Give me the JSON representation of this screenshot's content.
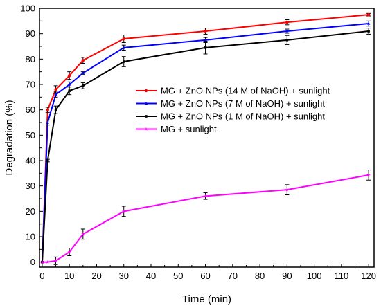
{
  "chart_data": {
    "type": "line",
    "title": "",
    "xlabel": "Time (min)",
    "ylabel": "Degradation (%)",
    "xlim": [
      -1,
      122
    ],
    "ylim": [
      -2,
      100
    ],
    "xticks": [
      0,
      10,
      20,
      30,
      40,
      50,
      60,
      70,
      80,
      90,
      100,
      110,
      120
    ],
    "yticks": [
      0,
      10,
      20,
      30,
      40,
      50,
      60,
      70,
      80,
      90,
      100
    ],
    "grid": false,
    "legend_position": "center-right",
    "series": [
      {
        "name": "MG + ZnO NPs (14 M of NaOH) + sunlight",
        "color": "#ff0000",
        "marker": "circle",
        "x": [
          0,
          2,
          5,
          10,
          15,
          30,
          60,
          90,
          120
        ],
        "y": [
          0,
          60,
          68,
          73.5,
          79.5,
          88,
          91,
          94.5,
          97.5
        ],
        "err": [
          0,
          1,
          1.5,
          1.5,
          1.2,
          1.5,
          1.2,
          1,
          0.5
        ]
      },
      {
        "name": "MG + ZnO NPs (7 M of NaOH) + sunlight",
        "color": "#0000ff",
        "marker": "triangle",
        "x": [
          0,
          2,
          5,
          10,
          15,
          30,
          60,
          90,
          120
        ],
        "y": [
          0,
          55,
          66,
          70,
          74.5,
          84.5,
          87.5,
          91,
          94
        ],
        "err": [
          0,
          1,
          1,
          1,
          0.5,
          1,
          1,
          0.8,
          1
        ]
      },
      {
        "name": "MG + ZnO NPs (1 M of NaOH) + sunlight",
        "color": "#000000",
        "marker": "square",
        "x": [
          0,
          2,
          5,
          10,
          15,
          30,
          60,
          90,
          120
        ],
        "y": [
          0,
          40,
          60,
          67.5,
          69.5,
          79,
          84.5,
          87.5,
          91
        ],
        "err": [
          0,
          0.5,
          1.5,
          1.5,
          1.2,
          2,
          2.5,
          1.8,
          1.2
        ]
      },
      {
        "name": "MG + sunlight",
        "color": "#ff00ff",
        "marker": "star",
        "x": [
          0,
          2,
          5,
          10,
          15,
          30,
          60,
          90,
          120
        ],
        "y": [
          0,
          0,
          0.5,
          4,
          11,
          20,
          26,
          28.5,
          34.3
        ],
        "err": [
          0,
          0,
          1.5,
          1.5,
          2,
          2,
          1.3,
          2,
          2
        ]
      }
    ]
  }
}
